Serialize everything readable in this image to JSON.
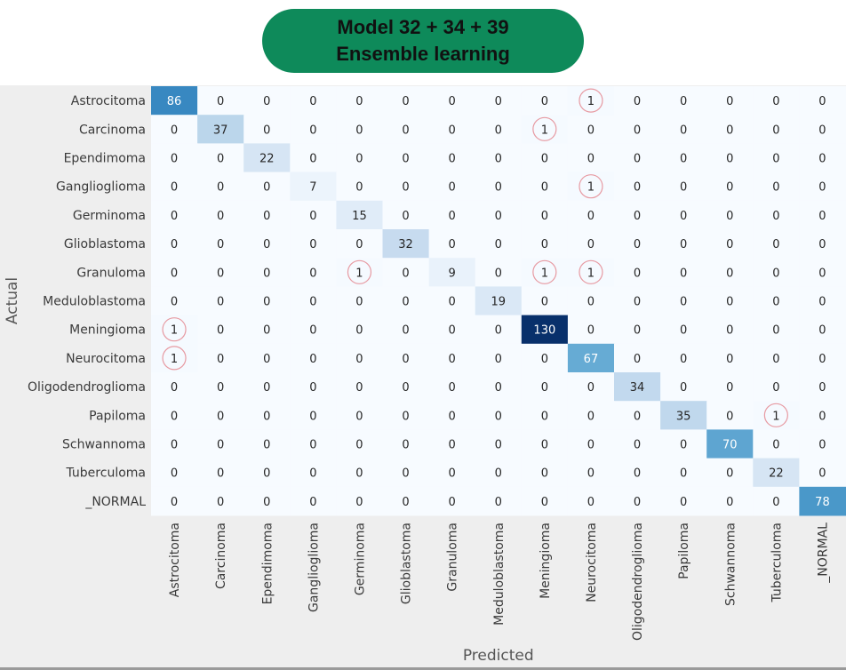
{
  "header": {
    "title_line1": "Model 32 + 34 + 39",
    "title_line2": "Ensemble learning"
  },
  "colors": {
    "title_background": "#0e8a5a",
    "panel_background": "#eeeeee",
    "colormap": "Blues",
    "highlight_circle": "#e79aa2"
  },
  "chart_data": {
    "type": "heatmap",
    "title": "",
    "xlabel": "Predicted",
    "ylabel": "Actual",
    "grid": false,
    "x_categories": [
      "Astrocitoma",
      "Carcinoma",
      "Ependimoma",
      "Ganglioglioma",
      "Germinoma",
      "Glioblastoma",
      "Granuloma",
      "Meduloblastoma",
      "Meningioma",
      "Neurocitoma",
      "Oligodendroglioma",
      "Papiloma",
      "Schwannoma",
      "Tuberculoma",
      "_NORMAL"
    ],
    "y_categories": [
      "Astrocitoma",
      "Carcinoma",
      "Ependimoma",
      "Ganglioglioma",
      "Germinoma",
      "Glioblastoma",
      "Granuloma",
      "Meduloblastoma",
      "Meningioma",
      "Neurocitoma",
      "Oligodendroglioma",
      "Papiloma",
      "Schwannoma",
      "Tuberculoma",
      "_NORMAL"
    ],
    "values": [
      [
        86,
        0,
        0,
        0,
        0,
        0,
        0,
        0,
        0,
        1,
        0,
        0,
        0,
        0,
        0
      ],
      [
        0,
        37,
        0,
        0,
        0,
        0,
        0,
        0,
        1,
        0,
        0,
        0,
        0,
        0,
        0
      ],
      [
        0,
        0,
        22,
        0,
        0,
        0,
        0,
        0,
        0,
        0,
        0,
        0,
        0,
        0,
        0
      ],
      [
        0,
        0,
        0,
        7,
        0,
        0,
        0,
        0,
        0,
        1,
        0,
        0,
        0,
        0,
        0
      ],
      [
        0,
        0,
        0,
        0,
        15,
        0,
        0,
        0,
        0,
        0,
        0,
        0,
        0,
        0,
        0
      ],
      [
        0,
        0,
        0,
        0,
        0,
        32,
        0,
        0,
        0,
        0,
        0,
        0,
        0,
        0,
        0
      ],
      [
        0,
        0,
        0,
        0,
        1,
        0,
        9,
        0,
        1,
        1,
        0,
        0,
        0,
        0,
        0
      ],
      [
        0,
        0,
        0,
        0,
        0,
        0,
        0,
        19,
        0,
        0,
        0,
        0,
        0,
        0,
        0
      ],
      [
        1,
        0,
        0,
        0,
        0,
        0,
        0,
        0,
        130,
        0,
        0,
        0,
        0,
        0,
        0
      ],
      [
        1,
        0,
        0,
        0,
        0,
        0,
        0,
        0,
        0,
        67,
        0,
        0,
        0,
        0,
        0
      ],
      [
        0,
        0,
        0,
        0,
        0,
        0,
        0,
        0,
        0,
        0,
        34,
        0,
        0,
        0,
        0
      ],
      [
        0,
        0,
        0,
        0,
        0,
        0,
        0,
        0,
        0,
        0,
        0,
        35,
        0,
        1,
        0
      ],
      [
        0,
        0,
        0,
        0,
        0,
        0,
        0,
        0,
        0,
        0,
        0,
        0,
        70,
        0,
        0
      ],
      [
        0,
        0,
        0,
        0,
        0,
        0,
        0,
        0,
        0,
        0,
        0,
        0,
        0,
        22,
        0
      ],
      [
        0,
        0,
        0,
        0,
        0,
        0,
        0,
        0,
        0,
        0,
        0,
        0,
        0,
        0,
        78
      ]
    ],
    "vmin": 0,
    "vmax": 130,
    "highlighted_cells": [
      [
        0,
        9
      ],
      [
        1,
        8
      ],
      [
        3,
        9
      ],
      [
        6,
        4
      ],
      [
        6,
        8
      ],
      [
        6,
        9
      ],
      [
        8,
        0
      ],
      [
        9,
        0
      ],
      [
        11,
        13
      ]
    ]
  }
}
